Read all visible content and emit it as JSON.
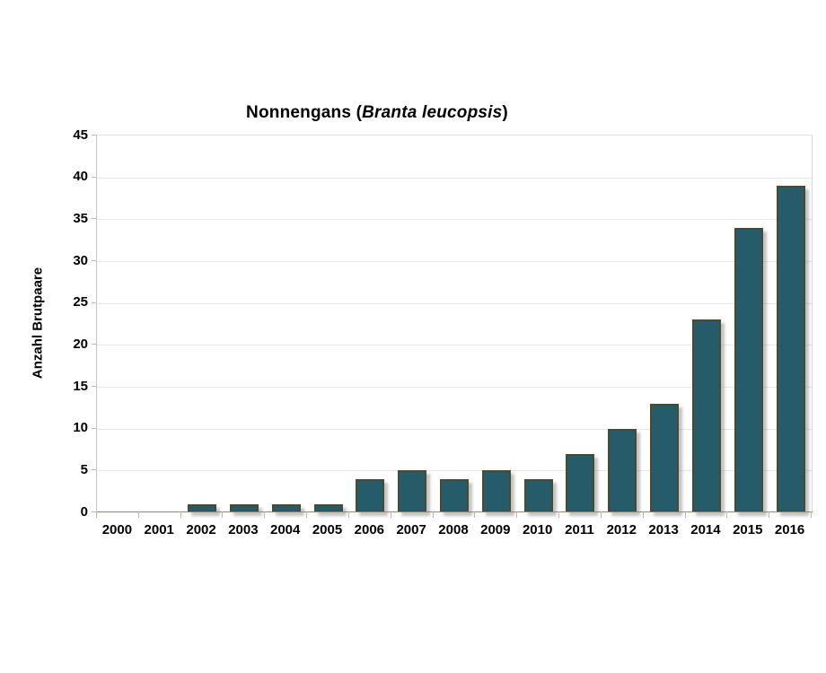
{
  "chart_data": {
    "type": "bar",
    "title": {
      "prefix": "Nonnengans (",
      "species": "Branta leucopsis",
      "suffix": ")"
    },
    "title_plain": "Nonnengans (Branta leucopsis)",
    "ylabel": "Anzahl Brutpaare",
    "xlabel": "",
    "categories": [
      "2000",
      "2001",
      "2002",
      "2003",
      "2004",
      "2005",
      "2006",
      "2007",
      "2008",
      "2009",
      "2010",
      "2011",
      "2012",
      "2013",
      "2014",
      "2015",
      "2016"
    ],
    "values": [
      0,
      0,
      1,
      1,
      1,
      1,
      4,
      5,
      4,
      5,
      4,
      7,
      10,
      13,
      23,
      34,
      39
    ],
    "ylim": [
      0,
      45
    ],
    "ytick_step": 5,
    "grid": true,
    "legend": "none",
    "colors": {
      "bar_fill": "#265b69",
      "bar_border": "#4a4a33",
      "axis_line": "#8a8a7c",
      "gridline": "#e6e6e2",
      "tick_mark": "#b9b9b0",
      "text": "#000000",
      "background": "#ffffff"
    }
  }
}
